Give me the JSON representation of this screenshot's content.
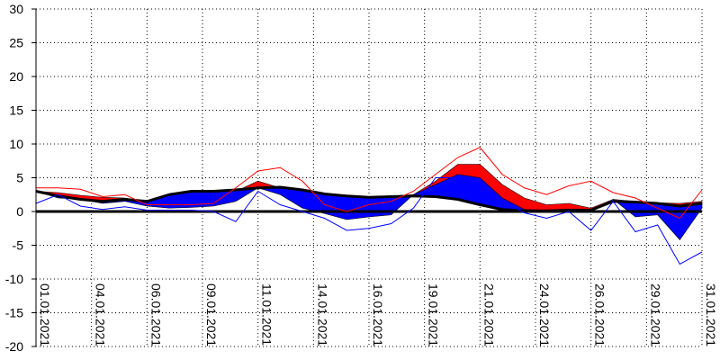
{
  "chart_data": {
    "type": "line",
    "title": "",
    "xlabel": "",
    "ylabel": "",
    "ylim": [
      -20,
      30
    ],
    "yticks": [
      30,
      25,
      20,
      15,
      10,
      5,
      0,
      -5,
      -10,
      -15,
      -20
    ],
    "x_start": "01.01.2021",
    "x_end": "31.01.2021",
    "x_tick_labels": [
      "01.01.2021",
      "04.01.2021",
      "06.01.2021",
      "09.01.2021",
      "11.01.2021",
      "14.01.2021",
      "16.01.2021",
      "19.01.2021",
      "21.01.2021",
      "24.01.2021",
      "26.01.2021",
      "29.01.2021",
      "31.01.2021"
    ],
    "x_tick_days": [
      1,
      3.5,
      6,
      8.5,
      11,
      13.5,
      16,
      18.5,
      21,
      23.5,
      26,
      28.5,
      31
    ],
    "grid": true,
    "legend": "none",
    "series": [
      {
        "role": "anomaly_area",
        "color": "#ff0000",
        "x": [
          1,
          2,
          3,
          4,
          5,
          6,
          7,
          8,
          9,
          10,
          11,
          12,
          13,
          14,
          15,
          16,
          17,
          18,
          19,
          20,
          21,
          22,
          23,
          24,
          25,
          26,
          27,
          28,
          29,
          30,
          31
        ],
        "values": [
          3.0,
          2.8,
          2.4,
          2.1,
          2.0,
          1.5,
          2.0,
          2.5,
          2.5,
          3.0,
          4.5,
          3.5,
          3.0,
          2.5,
          2.3,
          2.2,
          2.3,
          2.5,
          4.5,
          7.0,
          7.0,
          4.0,
          2.0,
          1.0,
          1.2,
          0.5,
          1.8,
          1.5,
          1.3,
          1.2,
          1.5
        ]
      },
      {
        "role": "anomaly_area",
        "color": "#0000ff",
        "x": [
          1,
          2,
          3,
          4,
          5,
          6,
          7,
          8,
          9,
          10,
          11,
          12,
          13,
          14,
          15,
          16,
          17,
          18,
          19,
          20,
          21,
          22,
          23,
          24,
          25,
          26,
          27,
          28,
          29,
          30,
          31
        ],
        "values": [
          3.0,
          2.0,
          1.8,
          1.2,
          1.5,
          0.8,
          0.5,
          0.6,
          0.8,
          1.5,
          3.5,
          2.5,
          0.5,
          -0.3,
          -1.2,
          -0.8,
          -0.5,
          2.5,
          4.0,
          5.5,
          5.0,
          2.0,
          0.3,
          0.2,
          0.2,
          0.2,
          1.8,
          -0.8,
          -0.5,
          -4.2,
          0.5
        ]
      },
      {
        "role": "reference_line",
        "color": "#000000",
        "x": [
          1,
          2,
          3,
          4,
          5,
          6,
          7,
          8,
          9,
          10,
          11,
          12,
          13,
          14,
          15,
          16,
          17,
          18,
          19,
          20,
          21,
          22,
          23,
          24,
          25,
          26,
          27,
          28,
          29,
          30,
          31
        ],
        "values": [
          3.0,
          2.3,
          1.8,
          1.5,
          1.8,
          1.5,
          2.5,
          3.0,
          3.0,
          3.2,
          3.5,
          3.6,
          3.2,
          2.6,
          2.3,
          2.1,
          2.2,
          2.3,
          2.2,
          1.8,
          1.0,
          0.3,
          0.1,
          0.1,
          0.2,
          0.2,
          1.5,
          1.4,
          1.2,
          0.8,
          1.2
        ]
      },
      {
        "role": "thin_line",
        "color": "#ff0000",
        "x": [
          1,
          2,
          3,
          4,
          5,
          6,
          7,
          8,
          9,
          10,
          11,
          12,
          13,
          14,
          15,
          16,
          17,
          18,
          19,
          20,
          21,
          22,
          23,
          24,
          25,
          26,
          27,
          28,
          29,
          30,
          31
        ],
        "values": [
          3.5,
          3.5,
          3.3,
          2.2,
          2.5,
          1.0,
          1.0,
          1.0,
          1.2,
          3.5,
          6.0,
          6.5,
          4.5,
          1.0,
          0.0,
          1.0,
          1.5,
          3.0,
          5.5,
          8.0,
          9.5,
          5.5,
          3.5,
          2.5,
          3.8,
          4.5,
          2.8,
          2.0,
          0.5,
          -1.0,
          3.2
        ]
      },
      {
        "role": "thin_line",
        "color": "#0000ff",
        "x": [
          1,
          2,
          3,
          4,
          5,
          6,
          7,
          8,
          9,
          10,
          11,
          12,
          13,
          14,
          15,
          16,
          17,
          18,
          19,
          20,
          21,
          22,
          23,
          24,
          25,
          26,
          27,
          28,
          29,
          30,
          31
        ],
        "values": [
          1.2,
          2.5,
          0.8,
          0.3,
          0.7,
          0.2,
          0.2,
          0.2,
          0.0,
          -1.5,
          3.0,
          1.0,
          0.0,
          -1.0,
          -2.8,
          -2.5,
          -1.8,
          0.5,
          5.0,
          5.0,
          4.0,
          1.5,
          -0.2,
          -1.0,
          0.0,
          -2.8,
          1.5,
          -3.0,
          -2.0,
          -7.8,
          -6.0
        ]
      }
    ]
  }
}
